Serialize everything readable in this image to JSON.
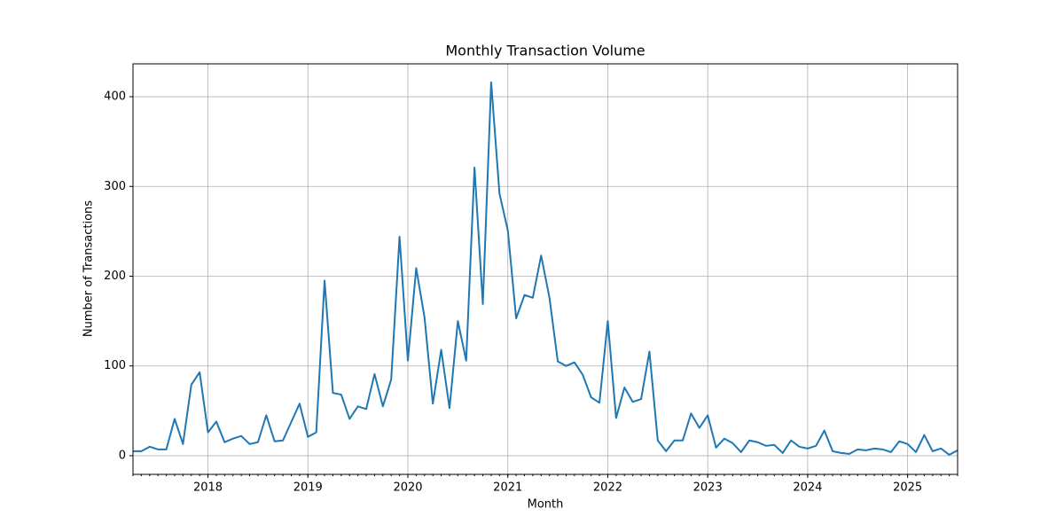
{
  "chart_data": {
    "type": "line",
    "title": "Monthly Transaction Volume",
    "x_label": "Month",
    "y_label": "Number of Transactions",
    "x": [
      "2017-04",
      "2017-05",
      "2017-06",
      "2017-07",
      "2017-08",
      "2017-09",
      "2017-10",
      "2017-11",
      "2017-12",
      "2018-01",
      "2018-02",
      "2018-03",
      "2018-04",
      "2018-05",
      "2018-06",
      "2018-07",
      "2018-08",
      "2018-09",
      "2018-10",
      "2018-12",
      "2019-01",
      "2019-02",
      "2019-03",
      "2019-04",
      "2019-05",
      "2019-06",
      "2019-07",
      "2019-08",
      "2019-09",
      "2019-10",
      "2019-11",
      "2019-12",
      "2020-01",
      "2020-02",
      "2020-03",
      "2020-04",
      "2020-05",
      "2020-06",
      "2020-07",
      "2020-08",
      "2020-09",
      "2020-10",
      "2020-11",
      "2020-12",
      "2021-01",
      "2021-02",
      "2021-03",
      "2021-04",
      "2021-05",
      "2021-06",
      "2021-07",
      "2021-08",
      "2021-09",
      "2021-10",
      "2021-11",
      "2021-12",
      "2022-01",
      "2022-02",
      "2022-03",
      "2022-04",
      "2022-05",
      "2022-06",
      "2022-07",
      "2022-08",
      "2022-09",
      "2022-10",
      "2022-11",
      "2022-12",
      "2023-01",
      "2023-02",
      "2023-03",
      "2023-04",
      "2023-05",
      "2023-06",
      "2023-07",
      "2023-08",
      "2023-09",
      "2023-10",
      "2023-11",
      "2023-12",
      "2024-01",
      "2024-02",
      "2024-03",
      "2024-04",
      "2024-05",
      "2024-06",
      "2024-07",
      "2024-08",
      "2024-09",
      "2024-10",
      "2024-11",
      "2024-12",
      "2025-01",
      "2025-02",
      "2025-03",
      "2025-04",
      "2025-05",
      "2025-06",
      "2025-07"
    ],
    "series": [
      {
        "name": "Transactions",
        "color": "#1f77b4",
        "values": [
          5,
          5,
          10,
          7,
          7,
          41,
          13,
          79,
          93,
          26,
          38,
          15,
          19,
          22,
          13,
          15,
          45,
          16,
          17,
          58,
          21,
          26,
          195,
          70,
          68,
          41,
          55,
          52,
          91,
          55,
          85,
          244,
          106,
          209,
          154,
          58,
          118,
          53,
          150,
          106,
          321,
          169,
          416,
          292,
          251,
          153,
          179,
          176,
          223,
          176,
          105,
          100,
          104,
          90,
          65,
          59,
          150,
          42,
          76,
          60,
          63,
          116,
          17,
          5,
          17,
          17,
          47,
          31,
          45,
          9,
          19,
          14,
          4,
          17,
          15,
          11,
          12,
          3,
          17,
          10,
          8,
          11,
          28,
          5,
          3,
          2,
          7,
          6,
          8,
          7,
          4,
          16,
          13,
          4,
          23,
          5,
          8,
          1,
          6
        ]
      }
    ],
    "xlim": [
      "2017-04",
      "2025-07"
    ],
    "xticks": [
      {
        "value": "2018-01",
        "label": "2018"
      },
      {
        "value": "2019-01",
        "label": "2019"
      },
      {
        "value": "2020-01",
        "label": "2020"
      },
      {
        "value": "2021-01",
        "label": "2021"
      },
      {
        "value": "2022-01",
        "label": "2022"
      },
      {
        "value": "2023-01",
        "label": "2023"
      },
      {
        "value": "2024-01",
        "label": "2024"
      },
      {
        "value": "2025-01",
        "label": "2025"
      }
    ],
    "ylim": [
      -20.8,
      436.6
    ],
    "yticks": [
      0,
      100,
      200,
      300,
      400
    ],
    "grid": true
  }
}
